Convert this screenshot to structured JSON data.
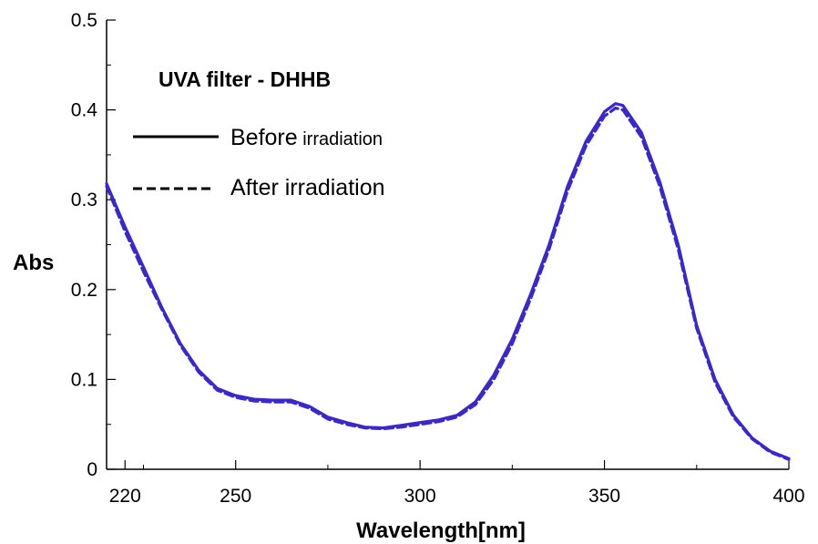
{
  "chart_data": {
    "type": "line",
    "xlabel": "Wavelength[nm]",
    "ylabel": "Abs",
    "xlim": [
      215,
      400
    ],
    "ylim": [
      0,
      0.5
    ],
    "x_ticks": [
      220,
      250,
      300,
      350,
      400
    ],
    "y_ticks": [
      0,
      0.1,
      0.2,
      0.3,
      0.4,
      0.5
    ],
    "y_tick_labels": [
      "0",
      "0.1",
      "0.2",
      "0.3",
      "0.4",
      "0.5"
    ],
    "grid": false,
    "legend_position": "top-left",
    "legend_title": "UVA filter - DHHB",
    "series": [
      {
        "name_main": "Before",
        "name_suffix": " irradiation",
        "style": "solid",
        "color": "#3a28cc",
        "x": [
          215,
          220,
          225,
          230,
          235,
          240,
          245,
          250,
          255,
          260,
          265,
          270,
          275,
          280,
          285,
          290,
          295,
          300,
          305,
          310,
          315,
          320,
          325,
          330,
          335,
          340,
          345,
          350,
          353,
          355,
          360,
          365,
          370,
          375,
          380,
          385,
          390,
          395,
          400
        ],
        "y": [
          0.318,
          0.27,
          0.225,
          0.18,
          0.14,
          0.11,
          0.09,
          0.082,
          0.078,
          0.077,
          0.077,
          0.07,
          0.058,
          0.052,
          0.047,
          0.046,
          0.049,
          0.052,
          0.055,
          0.06,
          0.075,
          0.105,
          0.145,
          0.195,
          0.25,
          0.315,
          0.365,
          0.398,
          0.407,
          0.405,
          0.375,
          0.32,
          0.25,
          0.16,
          0.1,
          0.06,
          0.035,
          0.02,
          0.012
        ]
      },
      {
        "name_main": "After irradiation",
        "name_suffix": "",
        "style": "dashed",
        "color": "#3a28cc",
        "x": [
          215,
          220,
          225,
          230,
          235,
          240,
          245,
          250,
          255,
          260,
          265,
          270,
          275,
          280,
          285,
          290,
          295,
          300,
          305,
          310,
          315,
          320,
          325,
          330,
          335,
          340,
          345,
          350,
          353,
          355,
          360,
          365,
          370,
          375,
          380,
          385,
          390,
          395,
          400
        ],
        "y": [
          0.315,
          0.265,
          0.22,
          0.178,
          0.138,
          0.108,
          0.088,
          0.08,
          0.076,
          0.075,
          0.075,
          0.068,
          0.056,
          0.05,
          0.046,
          0.045,
          0.047,
          0.05,
          0.053,
          0.058,
          0.072,
          0.1,
          0.14,
          0.19,
          0.245,
          0.31,
          0.36,
          0.393,
          0.402,
          0.4,
          0.37,
          0.315,
          0.245,
          0.157,
          0.097,
          0.058,
          0.034,
          0.019,
          0.011
        ]
      }
    ]
  }
}
